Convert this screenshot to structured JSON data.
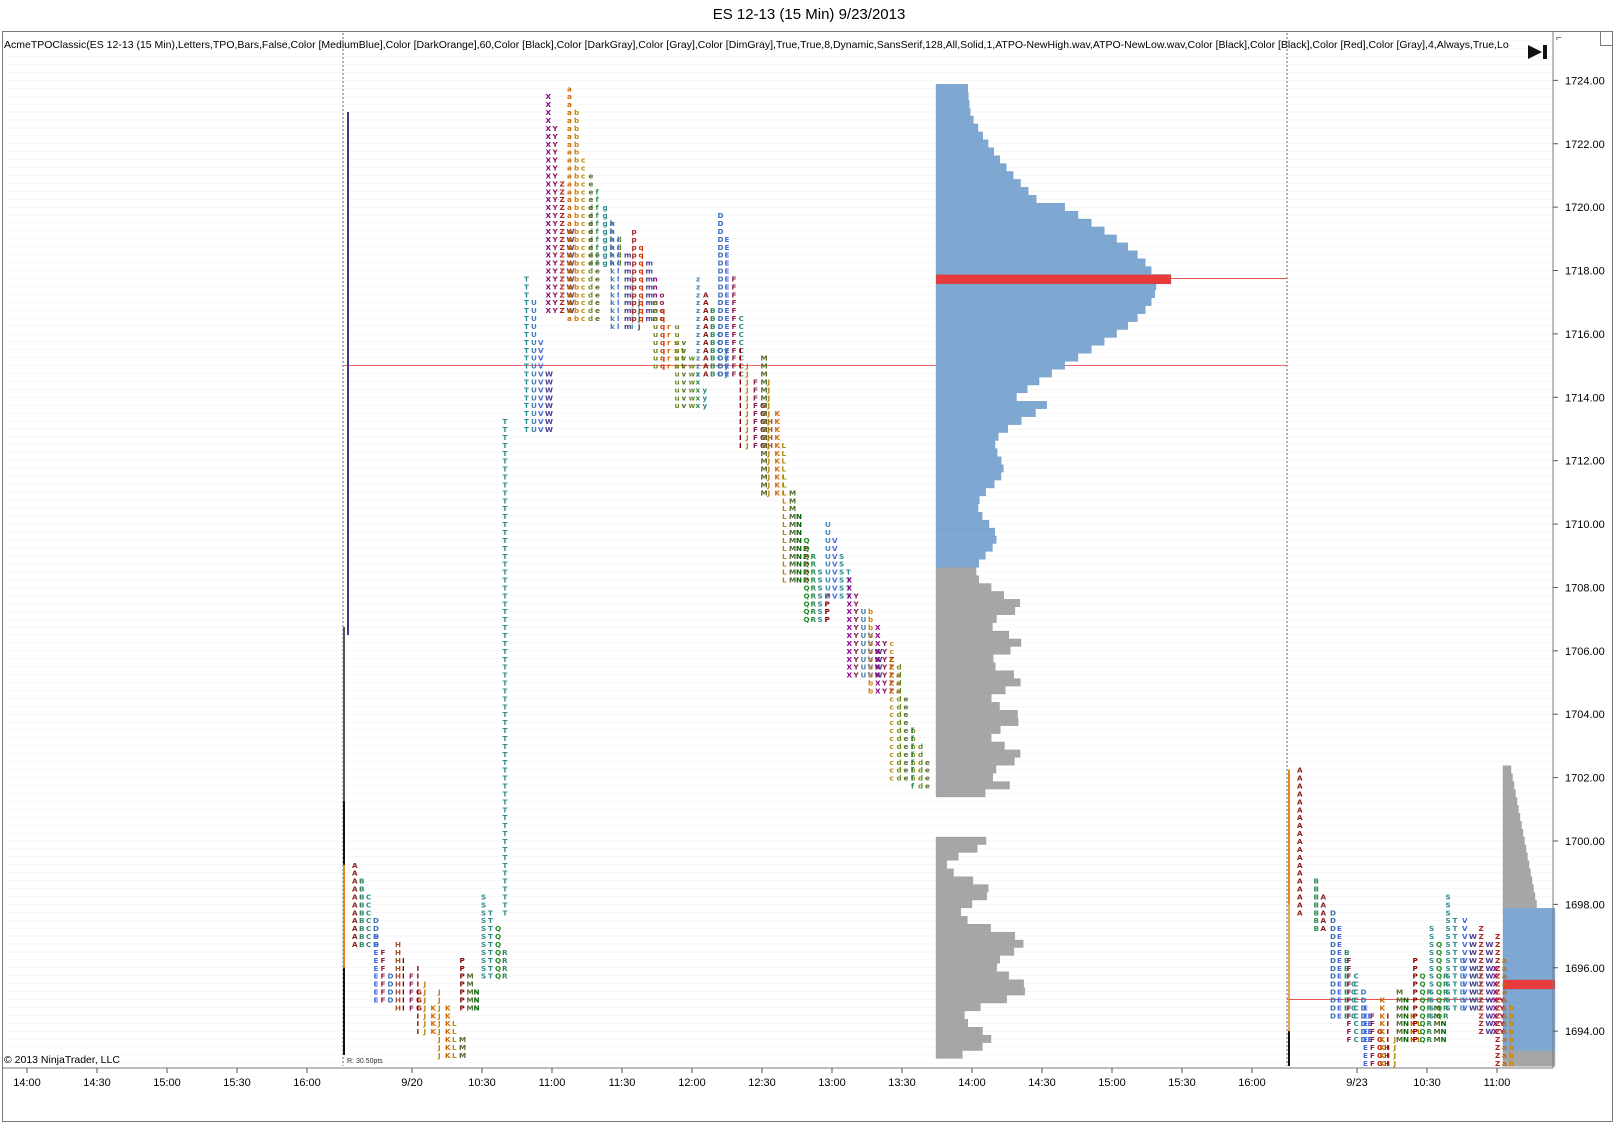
{
  "title": "ES 12-13 (15 Min)  9/23/2013",
  "indicator_label": "AcmeTPOClassic(ES 12-13  (15 Min),Letters,TPO,Bars,False,Color  [MediumBlue],Color  [DarkOrange],60,Color  [Black],Color  [DarkGray],Color  [Gray],Color  [DimGray],True,True,8,Dynamic,SansSerif,128,All,Solid,1,ATPO-NewHigh.wav,ATPO-NewLow.wav,Color  [Black],Color  [Black],Color  [Red],Color  [Gray],4,Always,True,Lo",
  "copyright": "© 2013 NinjaTrader, LLC",
  "range_note": "R: 30.50pts",
  "corner_mark": "⌐",
  "colors": {
    "volume_gray": "#a6a6a6",
    "value_area_blue": "#7ea8d2",
    "poc_red": "#e83a3a",
    "session_divider": "#555555",
    "gridline": "#efefef",
    "t_column": "#2e8b8b"
  },
  "chart_data": {
    "type": "market-profile",
    "instrument": "ES 12-13",
    "timeframe": "15 Min",
    "x_ticks": [
      "14:00",
      "14:30",
      "15:00",
      "15:30",
      "16:00",
      "9/20",
      "10:30",
      "11:00",
      "11:30",
      "12:00",
      "12:30",
      "13:00",
      "13:30",
      "14:00",
      "14:30",
      "15:00",
      "15:30",
      "16:00",
      "9/23",
      "10:30",
      "11:00"
    ],
    "y_ticks": [
      "1724.00",
      "1722.00",
      "1720.00",
      "1718.00",
      "1716.00",
      "1714.00",
      "1712.00",
      "1710.00",
      "1708.00",
      "1706.00",
      "1704.00",
      "1702.00",
      "1700.00",
      "1698.00",
      "1696.00",
      "1694.00"
    ],
    "ylim": [
      1692.9,
      1725.4
    ],
    "tick_size": 0.25,
    "sessions": [
      {
        "name": "9/20",
        "high": 1723.75,
        "low": 1693.25,
        "range_points": 30.5,
        "poc": 1717.75,
        "value_area_low": 1708.75,
        "value_area_high": 1723.75,
        "reference_line": 1715.0,
        "tpo_columns": [
          {
            "letters": "ABCD",
            "low": 1696.75,
            "high": 1699.25
          },
          {
            "letters": "DEF",
            "low": 1695.0,
            "high": 1697.0
          },
          {
            "letters": "FGHI",
            "low": 1694.75,
            "high": 1696.75
          },
          {
            "letters": "IJK",
            "low": 1694.0,
            "high": 1696.0
          },
          {
            "letters": "JKLM",
            "low": 1693.25,
            "high": 1695.25
          },
          {
            "letters": "MNP",
            "low": 1694.75,
            "high": 1696.25
          },
          {
            "letters": "QRST",
            "low": 1695.75,
            "high": 1698.25
          },
          {
            "letters": "T",
            "low": 1697.75,
            "high": 1713.25
          },
          {
            "letters": "TUVW",
            "low": 1713.0,
            "high": 1717.75
          },
          {
            "letters": "WXYZ",
            "low": 1716.75,
            "high": 1723.5
          },
          {
            "letters": "abcde",
            "low": 1716.5,
            "high": 1723.75
          },
          {
            "letters": "defgh",
            "low": 1718.25,
            "high": 1721.0
          },
          {
            "letters": "ijklm",
            "low": 1716.25,
            "high": 1719.5
          },
          {
            "letters": "mnopq",
            "low": 1716.5,
            "high": 1719.25
          },
          {
            "letters": "qrstu",
            "low": 1715.0,
            "high": 1717.0
          },
          {
            "letters": "uvwxy",
            "low": 1713.75,
            "high": 1716.25
          },
          {
            "letters": "yzABC",
            "low": 1714.75,
            "high": 1717.75
          },
          {
            "letters": "CDEF",
            "low": 1714.75,
            "high": 1719.75
          },
          {
            "letters": "FGHIJ",
            "low": 1712.5,
            "high": 1715.5
          },
          {
            "letters": "JKLM",
            "low": 1711.0,
            "high": 1715.25
          },
          {
            "letters": "LMNP",
            "low": 1708.25,
            "high": 1711.5
          },
          {
            "letters": "PQRS",
            "low": 1707.0,
            "high": 1709.5
          },
          {
            "letters": "STUV",
            "low": 1707.75,
            "high": 1710.0
          },
          {
            "letters": "UVWXY",
            "low": 1705.25,
            "high": 1708.25
          },
          {
            "letters": "XYZab",
            "low": 1704.75,
            "high": 1707.25
          },
          {
            "letters": "bcde",
            "low": 1702.0,
            "high": 1706.25
          },
          {
            "letters": "def",
            "low": 1701.75,
            "high": 1703.5
          }
        ]
      },
      {
        "name": "9/23",
        "high": 1702.25,
        "low": 1693.0,
        "poc": 1695.5,
        "value_area_low": 1693.5,
        "value_area_high": 1697.75,
        "reference_line": 1695.0,
        "tpo_columns": [
          {
            "letters": "A",
            "low": 1697.75,
            "high": 1702.25
          },
          {
            "letters": "AB",
            "low": 1697.25,
            "high": 1698.75
          },
          {
            "letters": "BCDE",
            "low": 1694.5,
            "high": 1697.75
          },
          {
            "letters": "CDEF",
            "low": 1693.75,
            "high": 1696.25
          },
          {
            "letters": "EFGH",
            "low": 1693.0,
            "high": 1694.75
          },
          {
            "letters": "IJK",
            "low": 1693.0,
            "high": 1695.0
          },
          {
            "letters": "KLMN",
            "low": 1693.75,
            "high": 1695.25
          },
          {
            "letters": "MNPQR",
            "low": 1693.75,
            "high": 1696.25
          },
          {
            "letters": "QRS",
            "low": 1694.5,
            "high": 1697.25
          },
          {
            "letters": "STU",
            "low": 1694.75,
            "high": 1698.25
          },
          {
            "letters": "UVW",
            "low": 1694.75,
            "high": 1697.5
          },
          {
            "letters": "WXYZ",
            "low": 1694.0,
            "high": 1697.25
          },
          {
            "letters": "Zab",
            "low": 1693.0,
            "high": 1697.0
          }
        ]
      }
    ]
  }
}
